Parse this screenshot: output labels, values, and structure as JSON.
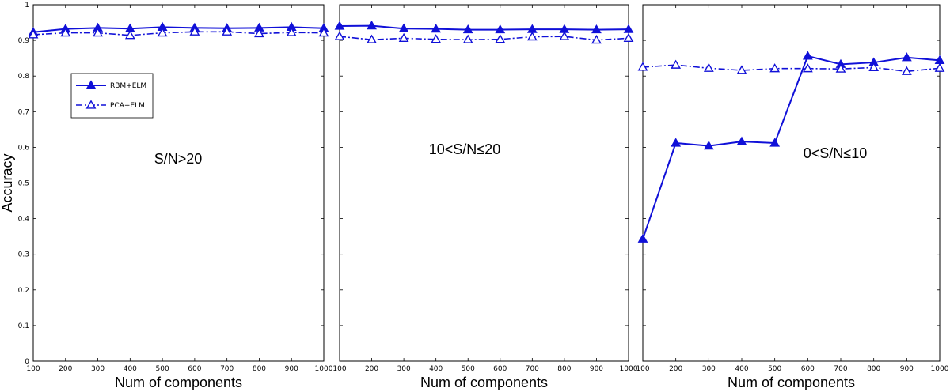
{
  "chart_data": [
    {
      "type": "line",
      "annotation": "S/N>20",
      "xlabel": "Num of components",
      "ylabel": "Accuracy",
      "x": [
        100,
        200,
        300,
        400,
        500,
        600,
        700,
        800,
        900,
        1000
      ],
      "xticks": [
        "100",
        "200",
        "300",
        "400",
        "500",
        "600",
        "700",
        "800",
        "900",
        "1000"
      ],
      "xlim": [
        100,
        1000
      ],
      "ylim": [
        0,
        1
      ],
      "yticks": [
        "0",
        "0.1",
        "0.2",
        "0.3",
        "0.4",
        "0.5",
        "0.6",
        "0.7",
        "0.8",
        "0.9",
        "1"
      ],
      "legend": "upper-left",
      "series": [
        {
          "name": "RBM+ELM",
          "style": "solid",
          "values": [
            0.923,
            0.932,
            0.935,
            0.933,
            0.937,
            0.935,
            0.934,
            0.935,
            0.937,
            0.934
          ]
        },
        {
          "name": "PCA+ELM",
          "style": "dashdot",
          "values": [
            0.916,
            0.921,
            0.921,
            0.914,
            0.921,
            0.924,
            0.924,
            0.919,
            0.922,
            0.921
          ]
        }
      ]
    },
    {
      "type": "line",
      "annotation": "10<S/N≤20",
      "xlabel": "Num of components",
      "x": [
        100,
        200,
        300,
        400,
        500,
        600,
        700,
        800,
        900,
        1000
      ],
      "xticks": [
        "100",
        "200",
        "300",
        "400",
        "500",
        "600",
        "700",
        "800",
        "900",
        "1000"
      ],
      "xlim": [
        100,
        1000
      ],
      "ylim": [
        0,
        1
      ],
      "series": [
        {
          "name": "RBM+ELM",
          "style": "solid",
          "values": [
            0.94,
            0.941,
            0.933,
            0.932,
            0.93,
            0.93,
            0.931,
            0.931,
            0.93,
            0.931
          ]
        },
        {
          "name": "PCA+ELM",
          "style": "dashdot",
          "values": [
            0.911,
            0.902,
            0.906,
            0.903,
            0.902,
            0.903,
            0.91,
            0.911,
            0.901,
            0.906
          ]
        }
      ]
    },
    {
      "type": "line",
      "annotation": "0<S/N≤10",
      "xlabel": "Num of components",
      "x": [
        100,
        200,
        300,
        400,
        500,
        600,
        700,
        800,
        900,
        1000
      ],
      "xticks": [
        "100",
        "200",
        "300",
        "400",
        "500",
        "600",
        "700",
        "800",
        "900",
        "1000"
      ],
      "xlim": [
        100,
        1000
      ],
      "ylim": [
        0,
        1
      ],
      "series": [
        {
          "name": "RBM+ELM",
          "style": "solid",
          "values": [
            0.343,
            0.612,
            0.604,
            0.616,
            0.612,
            0.856,
            0.833,
            0.838,
            0.852,
            0.844
          ]
        },
        {
          "name": "PCA+ELM",
          "style": "dashdot",
          "values": [
            0.825,
            0.831,
            0.822,
            0.816,
            0.821,
            0.821,
            0.82,
            0.824,
            0.813,
            0.822
          ]
        }
      ]
    }
  ],
  "colors": {
    "series": "#1010d8",
    "axes": "#000000"
  }
}
